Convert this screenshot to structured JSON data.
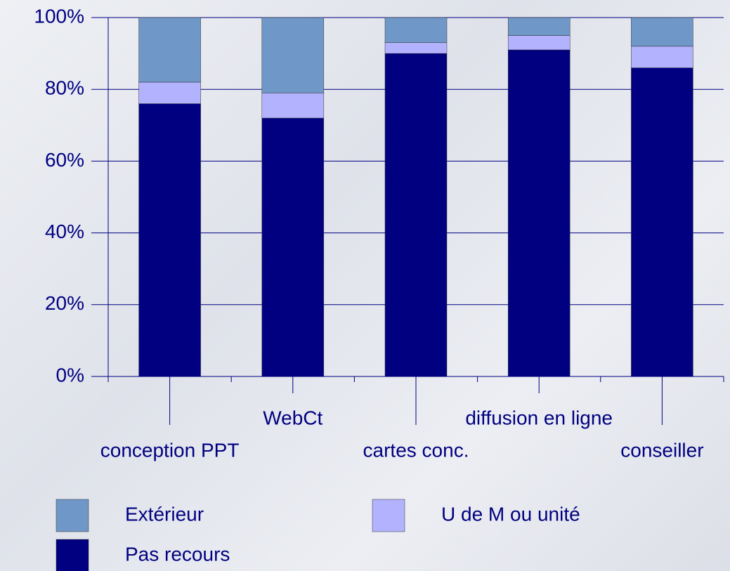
{
  "chart_data": {
    "type": "stacked_bar",
    "categories": [
      "conception PPT",
      "WebCt",
      "cartes conc.",
      "diffusion en ligne",
      "conseiller"
    ],
    "series": [
      {
        "name": "Extérieur",
        "color": "#6f97c7",
        "values": [
          18,
          21,
          7,
          5,
          8
        ]
      },
      {
        "name": "U de M ou unité",
        "color": "#b2b2ff",
        "values": [
          6,
          7,
          3,
          4,
          6
        ]
      },
      {
        "name": "Pas recours",
        "color": "#000080",
        "values": [
          76,
          72,
          90,
          91,
          86
        ]
      }
    ],
    "ylim": [
      0,
      100
    ],
    "yticks": [
      {
        "value": 0,
        "label": "0%"
      },
      {
        "value": 20,
        "label": "20%"
      },
      {
        "value": 40,
        "label": "40%"
      },
      {
        "value": 60,
        "label": "60%"
      },
      {
        "value": 80,
        "label": "80%"
      },
      {
        "value": 100,
        "label": "100%"
      }
    ],
    "grid": true
  }
}
